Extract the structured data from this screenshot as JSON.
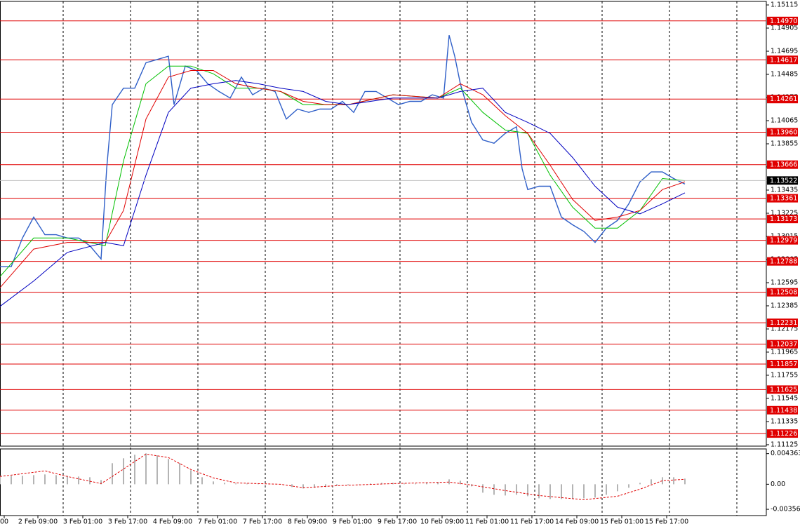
{
  "chart_data": [
    {
      "type": "line",
      "xlim": [
        0,
        272
      ],
      "ylim": [
        1.11112,
        1.15147
      ],
      "yticks": [
        1.15115,
        1.14905,
        1.14695,
        1.14485,
        1.14275,
        1.14065,
        1.13855,
        1.13645,
        1.13435,
        1.13225,
        1.13015,
        1.12805,
        1.12595,
        1.12385,
        1.12175,
        1.11965,
        1.11755,
        1.11545,
        1.11335,
        1.11125
      ],
      "xticks": [
        {
          "value": 1.5,
          "label": "00"
        },
        {
          "value": 13.5,
          "label": "2 Feb 09:00"
        },
        {
          "value": 29.5,
          "label": "3 Feb 01:00"
        },
        {
          "value": 45.5,
          "label": "3 Feb 17:00"
        },
        {
          "value": 61.5,
          "label": "4 Feb 09:00"
        },
        {
          "value": 77.5,
          "label": "7 Feb 01:00"
        },
        {
          "value": 93.5,
          "label": "7 Feb 17:00"
        },
        {
          "value": 109.5,
          "label": "8 Feb 09:00"
        },
        {
          "value": 125.5,
          "label": "9 Feb 01:00"
        },
        {
          "value": 141.5,
          "label": "9 Feb 17:00"
        },
        {
          "value": 157.5,
          "label": "10 Feb 09:00"
        },
        {
          "value": 173.5,
          "label": "11 Feb 01:00"
        },
        {
          "value": 189.5,
          "label": "11 Feb 17:00"
        },
        {
          "value": 205.5,
          "label": "14 Feb 09:00"
        },
        {
          "value": 221.5,
          "label": "15 Feb 01:00"
        },
        {
          "value": 237.5,
          "label": "15 Feb 17:00"
        }
      ],
      "vgrid": [
        22.5,
        46.5,
        70.5,
        94.5,
        118.5,
        142.5,
        166.5,
        190.5,
        214.5,
        238.5,
        262.5
      ],
      "levels": [
        {
          "value": 1.1497,
          "label": "1.14970"
        },
        1.14617,
        1.14261,
        {
          "value": 1.1396,
          "label": "1.13960"
        },
        1.13666,
        1.13361,
        1.13173,
        1.12979,
        1.12788,
        1.12508,
        1.12231,
        1.12037,
        1.11857,
        1.11625,
        1.11438,
        1.11226
      ],
      "level_color": "#e00000",
      "current_price": 1.13522,
      "series": [
        {
          "color": "#2f5fc8",
          "x": [
            0,
            4,
            8,
            12,
            16,
            20,
            24,
            28,
            32,
            36,
            38,
            40,
            44,
            48,
            52,
            56,
            60,
            62,
            66,
            70,
            74,
            78,
            82,
            86,
            90,
            94,
            98,
            102,
            106,
            110,
            114,
            118,
            122,
            126,
            130,
            134,
            138,
            142,
            146,
            150,
            154,
            158,
            160,
            162,
            164,
            168,
            172,
            176,
            180,
            184,
            186,
            188,
            192,
            196,
            200,
            204,
            208,
            212,
            216,
            220,
            224,
            228,
            232,
            236,
            240,
            244
          ],
          "values": [
            1.1274,
            1.1274,
            1.13,
            1.1319,
            1.1303,
            1.1303,
            1.13,
            1.13,
            1.1293,
            1.1281,
            1.1363,
            1.1421,
            1.1436,
            1.1436,
            1.1459,
            1.1462,
            1.1465,
            1.1421,
            1.1456,
            1.1452,
            1.144,
            1.1433,
            1.1427,
            1.1446,
            1.143,
            1.1436,
            1.1433,
            1.1408,
            1.1417,
            1.1414,
            1.1417,
            1.1417,
            1.1424,
            1.1414,
            1.1433,
            1.1433,
            1.1427,
            1.1421,
            1.1424,
            1.1424,
            1.143,
            1.1427,
            1.1484,
            1.1465,
            1.144,
            1.1405,
            1.1389,
            1.1386,
            1.1395,
            1.1401,
            1.1363,
            1.1344,
            1.1347,
            1.1347,
            1.1319,
            1.1312,
            1.1306,
            1.1296,
            1.1309,
            1.1316,
            1.1331,
            1.1351,
            1.136,
            1.136,
            1.1354,
            1.1349
          ]
        },
        {
          "color": "#00c000",
          "x": [
            0,
            12,
            24,
            37.5,
            44,
            52,
            60,
            68,
            76,
            84,
            92,
            100,
            108,
            116,
            124,
            140,
            156,
            164,
            172,
            180,
            188,
            196,
            204,
            212,
            220,
            228,
            236,
            244
          ],
          "values": [
            1.1265,
            1.13,
            1.13,
            1.1293,
            1.137,
            1.144,
            1.1456,
            1.1456,
            1.1449,
            1.1436,
            1.1436,
            1.1433,
            1.1421,
            1.1421,
            1.1421,
            1.143,
            1.1427,
            1.1436,
            1.1414,
            1.1398,
            1.1395,
            1.1357,
            1.1328,
            1.1309,
            1.1309,
            1.1325,
            1.1354,
            1.1352
          ]
        },
        {
          "color": "#e00000",
          "x": [
            0,
            12,
            24,
            37.5,
            44,
            52,
            60,
            68,
            76,
            84,
            92,
            100,
            108,
            116,
            124,
            140,
            156,
            164,
            172,
            180,
            188,
            196,
            204,
            212,
            220,
            228,
            236,
            244
          ],
          "values": [
            1.1255,
            1.129,
            1.1296,
            1.1296,
            1.1325,
            1.1408,
            1.1446,
            1.1452,
            1.1452,
            1.144,
            1.1436,
            1.1433,
            1.1424,
            1.1421,
            1.1421,
            1.143,
            1.1427,
            1.144,
            1.143,
            1.1411,
            1.1395,
            1.1366,
            1.1335,
            1.1316,
            1.1319,
            1.1325,
            1.1344,
            1.1351
          ]
        },
        {
          "color": "#0000c0",
          "x": [
            0,
            12,
            24,
            37.5,
            44,
            52,
            60,
            68,
            76,
            84,
            92,
            100,
            108,
            116,
            124,
            140,
            156,
            164,
            172,
            180,
            188,
            196,
            204,
            212,
            220,
            228,
            236,
            244
          ],
          "values": [
            1.1238,
            1.1261,
            1.1287,
            1.1296,
            1.1293,
            1.1357,
            1.1414,
            1.1436,
            1.144,
            1.1443,
            1.144,
            1.1436,
            1.1433,
            1.1424,
            1.1421,
            1.1427,
            1.1427,
            1.1433,
            1.1436,
            1.1414,
            1.1405,
            1.1395,
            1.1373,
            1.1347,
            1.1328,
            1.1322,
            1.1331,
            1.1341
          ]
        }
      ]
    },
    {
      "type": "bar",
      "xlim": [
        0,
        272
      ],
      "ylim": [
        -0.00446,
        0.00503
      ],
      "yticks": [
        0.004363,
        {
          "value": 0,
          "label": "0.00"
        },
        -0.003568
      ],
      "series": [
        {
          "color": "#b4b4b4",
          "x": [
            0,
            4,
            8,
            12,
            16,
            20,
            24,
            28,
            32,
            36,
            40,
            44,
            48,
            52,
            56,
            60,
            64,
            68,
            72,
            76,
            80,
            84,
            88,
            92,
            96,
            100,
            104,
            108,
            112,
            116,
            120,
            124,
            128,
            132,
            136,
            140,
            144,
            148,
            152,
            156,
            160,
            164,
            168,
            172,
            176,
            180,
            184,
            188,
            192,
            196,
            200,
            204,
            208,
            212,
            216,
            220,
            224,
            228,
            232,
            236,
            240,
            244
          ],
          "values": [
            0.0012,
            0.0012,
            0.0012,
            0.0013,
            0.0014,
            0.0013,
            0.0012,
            0.0011,
            0.001,
            0.0006,
            0.003,
            0.0037,
            0.0042,
            0.0044,
            0.0041,
            0.0036,
            0.003,
            0.002,
            0.001,
            0.0004,
            0.0002,
            0.0001,
            0.0001,
            0.0001,
            0.0001,
            0,
            -0.0004,
            -0.0006,
            -0.0005,
            -0.0004,
            -0.0002,
            -0.0001,
            0,
            0.0001,
            0.0002,
            0.0002,
            0.0001,
            0.0001,
            0.0002,
            0.0003,
            0.0007,
            0.0005,
            -0.0003,
            -0.0012,
            -0.0015,
            -0.0016,
            -0.0015,
            -0.0017,
            -0.002,
            -0.0021,
            -0.0021,
            -0.0021,
            -0.002,
            -0.0019,
            -0.0015,
            -0.001,
            -0.0005,
            0.0002,
            0.0007,
            0.001,
            0.001,
            0.0008
          ]
        },
        {
          "type": "line",
          "color": "#e00000",
          "dashed": true,
          "x": [
            0,
            16,
            24,
            36,
            40,
            52,
            60,
            68,
            76,
            84,
            100,
            108,
            120,
            140,
            160,
            168,
            180,
            192,
            208,
            220,
            228,
            236,
            244
          ],
          "values": [
            0.0011,
            0.0019,
            0.0011,
            0.0001,
            0.0011,
            0.0043,
            0.0038,
            0.0021,
            0.0009,
            0.0002,
            0,
            -0.0005,
            -0.0002,
            0.0001,
            0.0003,
            -0.0001,
            -0.0009,
            -0.0016,
            -0.0022,
            -0.0017,
            -0.0007,
            0.0005,
            0.0007
          ]
        }
      ]
    }
  ]
}
